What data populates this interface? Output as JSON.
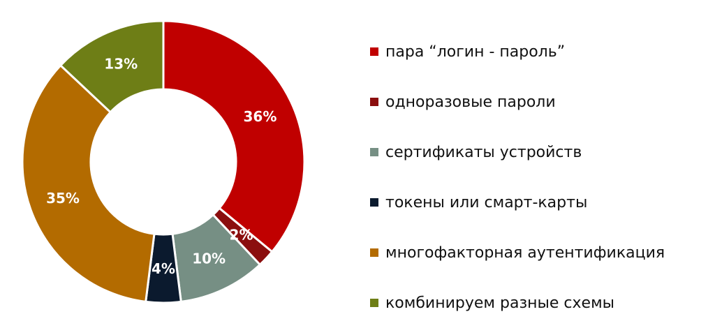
{
  "chart_data": {
    "type": "pie",
    "donut": true,
    "legend_position": "right",
    "slices": [
      {
        "label": "пара “логин - пароль”",
        "value": 36,
        "value_label": "36%",
        "color": "#C00000"
      },
      {
        "label": "одноразовые пароли",
        "value": 2,
        "value_label": "2%",
        "color": "#8B0E0E"
      },
      {
        "label": "сертификаты устройств",
        "value": 10,
        "value_label": "10%",
        "color": "#768F84"
      },
      {
        "label": "токены или смарт-карты",
        "value": 4,
        "value_label": "4%",
        "color": "#0B1A2E"
      },
      {
        "label": "многофакторная аутентификация",
        "value": 35,
        "value_label": "35%",
        "color": "#B36B00"
      },
      {
        "label": "комбинируем разные схемы",
        "value": 13,
        "value_label": "13%",
        "color": "#6E7E16"
      }
    ]
  }
}
